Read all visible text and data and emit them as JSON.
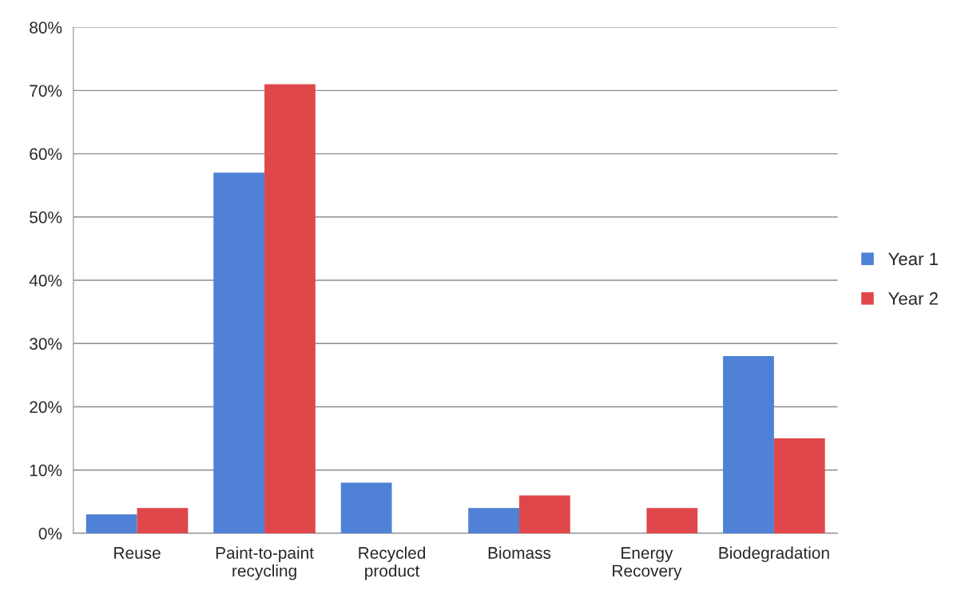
{
  "chart_data": {
    "type": "bar",
    "categories": [
      "Reuse",
      "Paint-to-paint\nrecycling",
      "Recycled\nproduct",
      "Biomass",
      "Energy\nRecovery",
      "Biodegradation"
    ],
    "series": [
      {
        "name": "Year 1",
        "color": "#4f81d6",
        "values": [
          3,
          57,
          8,
          4,
          null,
          28
        ]
      },
      {
        "name": "Year 2",
        "color": "#e0474a",
        "values": [
          4,
          71,
          null,
          6,
          4,
          15
        ]
      }
    ],
    "ylim": [
      0,
      80
    ],
    "yticks": [
      {
        "value": 0,
        "label": "0%"
      },
      {
        "value": 10,
        "label": "10%"
      },
      {
        "value": 20,
        "label": "20%"
      },
      {
        "value": 30,
        "label": "30%"
      },
      {
        "value": 40,
        "label": "40%"
      },
      {
        "value": 50,
        "label": "50%"
      },
      {
        "value": 60,
        "label": "60%"
      },
      {
        "value": 70,
        "label": "70%"
      },
      {
        "value": 80,
        "label": "80%"
      }
    ],
    "grid": "y",
    "legend": "right"
  }
}
